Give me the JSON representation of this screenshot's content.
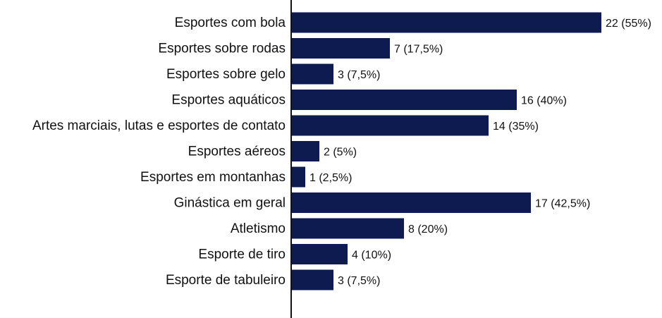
{
  "chart_data": {
    "type": "bar",
    "orientation": "horizontal",
    "categories": [
      "Esportes com bola",
      "Esportes sobre rodas",
      "Esportes sobre gelo",
      "Esportes aquáticos",
      "Artes marciais, lutas e esportes de contato",
      "Esportes aéreos",
      "Esportes em montanhas",
      "Ginástica em geral",
      "Atletismo",
      "Esporte de tiro",
      "Esporte de tabuleiro"
    ],
    "values": [
      22,
      7,
      3,
      16,
      14,
      2,
      1,
      17,
      8,
      4,
      3
    ],
    "data_labels": [
      "22 (55%)",
      "7 (17,5%)",
      "3 (7,5%)",
      "16 (40%)",
      "14 (35%)",
      "2 (5%)",
      "1 (2,5%)",
      "17 (42,5%)",
      "8 (20%)",
      "4 (10%)",
      "3 (7,5%)"
    ],
    "xlim": [
      0,
      22
    ],
    "grid": false,
    "legend": "none",
    "bar_color": "#0d1b50",
    "axis_color": "#111111"
  }
}
